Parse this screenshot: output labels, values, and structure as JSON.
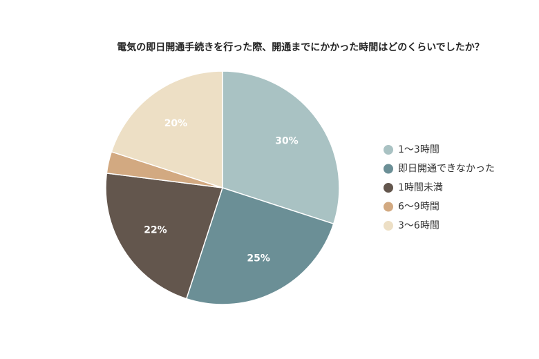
{
  "chart_data": {
    "type": "pie",
    "title": "電気の即日開通手続きを行った際、開通までにかかった時間はどのくらいでしたか？",
    "categories": [
      "1〜3時間",
      "即日開通できなかった",
      "1時間未満",
      "6〜9時間",
      "3〜6時間"
    ],
    "values": [
      30,
      25,
      22,
      3,
      20
    ],
    "value_labels": [
      "30%",
      "25%",
      "22%",
      null,
      "20%"
    ],
    "colors": [
      "#a9c2c3",
      "#6b8f96",
      "#63564d",
      "#d2a981",
      "#eddfc5"
    ],
    "legend": "right"
  }
}
